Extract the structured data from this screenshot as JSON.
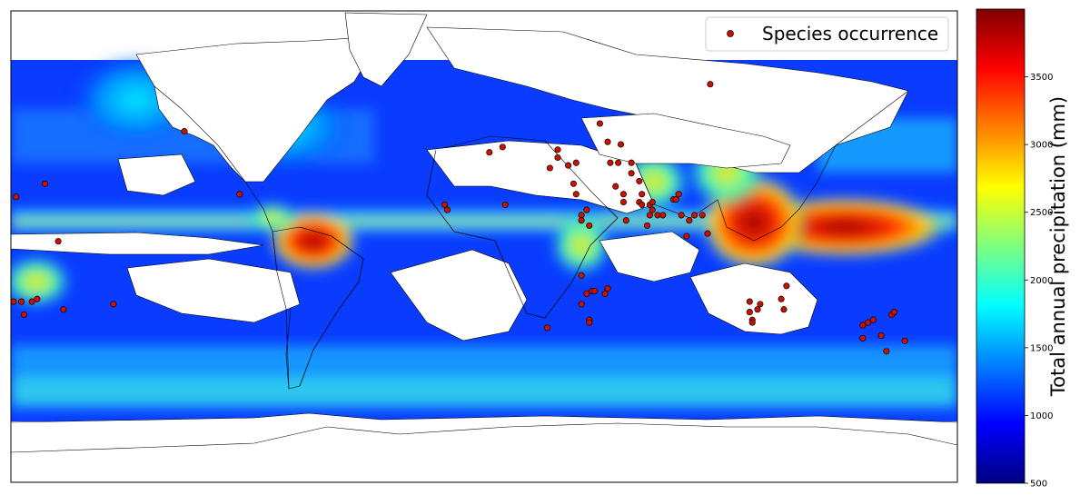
{
  "legend": {
    "label": "Species occurrence"
  },
  "colorbar": {
    "label": "Total annual precipitation (mm)",
    "range": [
      500,
      4000
    ],
    "ticks": [
      500,
      1000,
      1500,
      2000,
      2500,
      3000,
      3500
    ],
    "tick_labels": [
      "500",
      "1000",
      "1500",
      "2000",
      "2500",
      "3000",
      "3500"
    ],
    "colormap": [
      "#00007f",
      "#0000ff",
      "#007fff",
      "#00ffff",
      "#7fff7f",
      "#ffff00",
      "#ff7f00",
      "#ff0000",
      "#7f0000"
    ]
  },
  "map": {
    "extent": {
      "lon": [
        -180,
        180
      ],
      "lat": [
        -90,
        90
      ]
    },
    "ocean_mask_lat_range": [
      -60,
      80
    ],
    "marker_color": "#cc1100",
    "occurrences": [
      [
        -178,
        19
      ],
      [
        -167,
        24
      ],
      [
        -162,
        2
      ],
      [
        -179,
        -21
      ],
      [
        -176,
        -21
      ],
      [
        -172,
        -21
      ],
      [
        -170,
        -20
      ],
      [
        -175,
        -26
      ],
      [
        -160,
        -24
      ],
      [
        -141,
        -22
      ],
      [
        -114,
        44
      ],
      [
        -93,
        20
      ],
      [
        -15,
        16
      ],
      [
        -14,
        14
      ],
      [
        2,
        36
      ],
      [
        7,
        38
      ],
      [
        8,
        16
      ],
      [
        24,
        -31
      ],
      [
        25,
        30
      ],
      [
        28,
        34
      ],
      [
        28,
        37
      ],
      [
        32,
        31
      ],
      [
        34,
        24
      ],
      [
        35,
        32
      ],
      [
        35,
        20
      ],
      [
        37,
        12
      ],
      [
        37,
        10
      ],
      [
        39,
        14
      ],
      [
        40,
        8
      ],
      [
        37,
        -11
      ],
      [
        39,
        -18
      ],
      [
        37,
        -22
      ],
      [
        40,
        -28
      ],
      [
        40,
        -29
      ],
      [
        41,
        -17
      ],
      [
        42,
        -17
      ],
      [
        46,
        -18
      ],
      [
        47,
        -16
      ],
      [
        44,
        47
      ],
      [
        47,
        40
      ],
      [
        48,
        32
      ],
      [
        50,
        23
      ],
      [
        51,
        32
      ],
      [
        52,
        39
      ],
      [
        53,
        20
      ],
      [
        53,
        17
      ],
      [
        54,
        10
      ],
      [
        56,
        32
      ],
      [
        56,
        28
      ],
      [
        59,
        25
      ],
      [
        59,
        17
      ],
      [
        60,
        20
      ],
      [
        60,
        16
      ],
      [
        63,
        16
      ],
      [
        63,
        12
      ],
      [
        64,
        17
      ],
      [
        64,
        14
      ],
      [
        62,
        8
      ],
      [
        66,
        12
      ],
      [
        68,
        12
      ],
      [
        72,
        18
      ],
      [
        73,
        18
      ],
      [
        74,
        20
      ],
      [
        75,
        12
      ],
      [
        77,
        4
      ],
      [
        78,
        10
      ],
      [
        80,
        12
      ],
      [
        83,
        12
      ],
      [
        85,
        5
      ],
      [
        86,
        62
      ],
      [
        101,
        -21
      ],
      [
        101,
        -25
      ],
      [
        102,
        -28
      ],
      [
        102,
        -29
      ],
      [
        104,
        -24
      ],
      [
        105,
        -22
      ],
      [
        113,
        -20
      ],
      [
        114,
        -24
      ],
      [
        115,
        -15
      ],
      [
        144,
        -30
      ],
      [
        144,
        -35
      ],
      [
        146,
        -29
      ],
      [
        148,
        -28
      ],
      [
        151,
        -34
      ],
      [
        155,
        -26
      ],
      [
        156,
        -25
      ],
      [
        160,
        -36
      ],
      [
        153,
        -40
      ]
    ]
  }
}
